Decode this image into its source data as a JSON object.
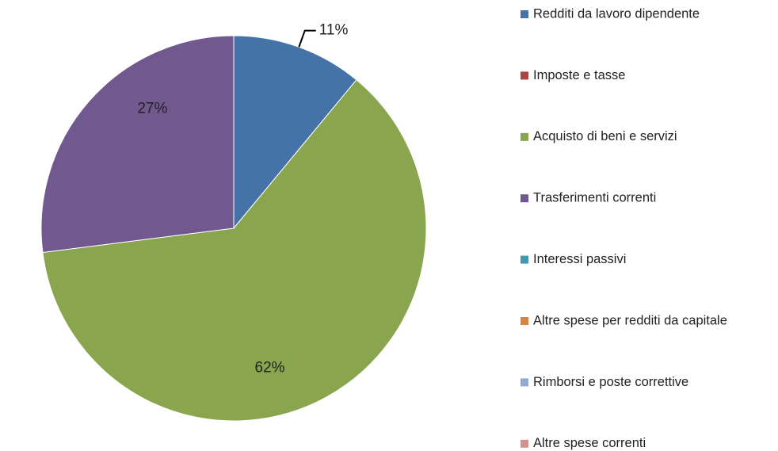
{
  "chart_data": {
    "type": "pie",
    "categories": [
      "Redditi da lavoro dipendente",
      "Imposte e tasse",
      "Acquisto di beni e servizi",
      "Trasferimenti correnti",
      "Interessi passivi",
      "Altre spese per redditi da  capitale",
      "Rimborsi e poste correttive",
      "Altre spese correnti"
    ],
    "values": [
      11,
      0,
      62,
      27,
      0,
      0,
      0,
      0
    ],
    "value_labels": [
      "11%",
      null,
      "62%",
      "27%",
      null,
      null,
      null,
      null
    ],
    "colors": [
      "#4572a7",
      "#aa4643",
      "#89a54e",
      "#71588f",
      "#4198af",
      "#db843d",
      "#93a9cf",
      "#d19392"
    ],
    "legend": "right"
  }
}
